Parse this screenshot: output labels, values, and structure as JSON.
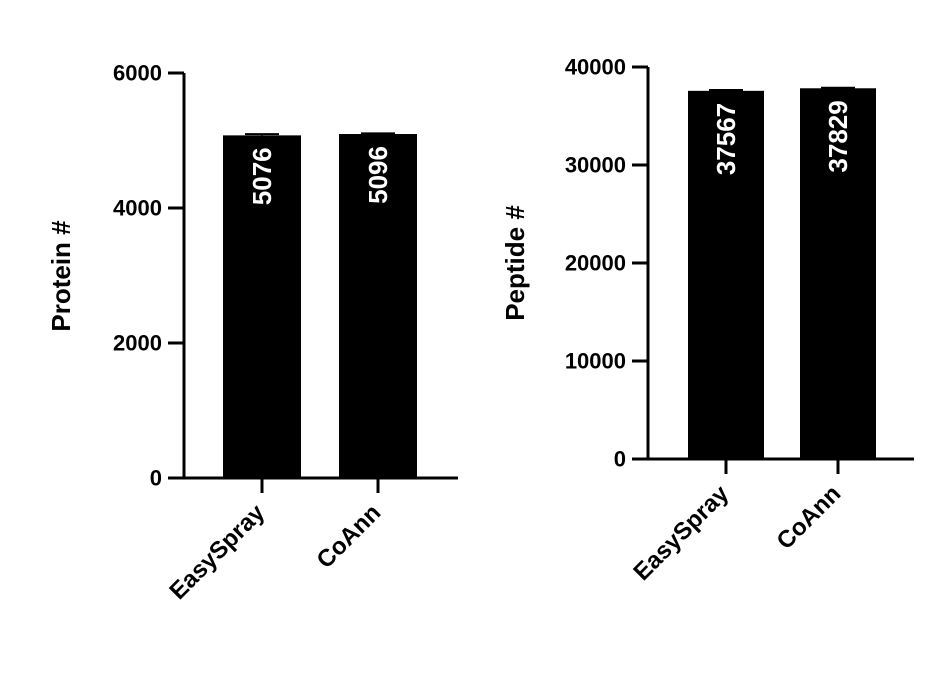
{
  "chart_data": [
    {
      "type": "bar",
      "categories": [
        "EasySpray",
        "CoAnn"
      ],
      "values": [
        5076,
        5096
      ],
      "error": [
        18,
        10
      ],
      "value_labels": [
        "5076",
        "5096"
      ],
      "xlabel": "",
      "ylabel": "Protein #",
      "ylim": [
        0,
        6000
      ],
      "yticks": [
        0,
        2000,
        4000,
        6000
      ],
      "ytick_labels": [
        "0",
        "2000",
        "4000",
        "6000"
      ],
      "grid": false,
      "legend": "none",
      "bar_color": "#000000",
      "label_color": "#ffffff"
    },
    {
      "type": "bar",
      "categories": [
        "EasySpray",
        "CoAnn"
      ],
      "values": [
        37567,
        37829
      ],
      "error": [
        90,
        60
      ],
      "value_labels": [
        "37567",
        "37829"
      ],
      "xlabel": "",
      "ylabel": "Peptide #",
      "ylim": [
        0,
        40000
      ],
      "yticks": [
        0,
        10000,
        20000,
        30000,
        40000
      ],
      "ytick_labels": [
        "0",
        "10000",
        "20000",
        "30000",
        "40000"
      ],
      "grid": false,
      "legend": "none",
      "bar_color": "#000000",
      "label_color": "#ffffff"
    }
  ]
}
